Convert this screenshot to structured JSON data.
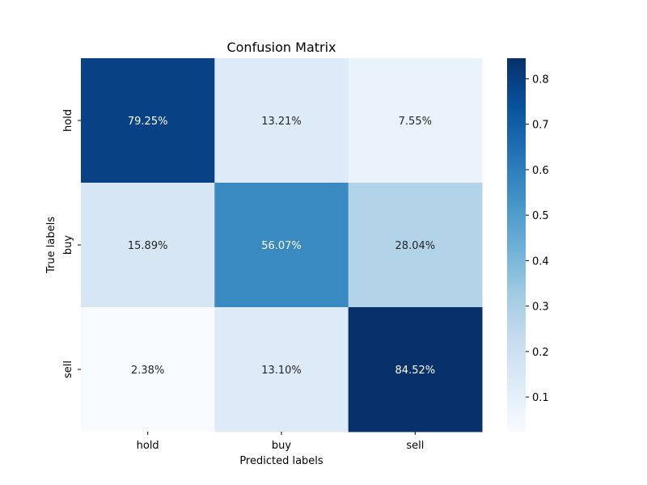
{
  "chart_data": {
    "type": "heatmap",
    "title": "Confusion Matrix",
    "xlabel": "Predicted labels",
    "ylabel": "True labels",
    "x_categories": [
      "hold",
      "buy",
      "sell"
    ],
    "y_categories": [
      "hold",
      "buy",
      "sell"
    ],
    "values": [
      [
        0.7925,
        0.1321,
        0.0755
      ],
      [
        0.1589,
        0.5607,
        0.2804
      ],
      [
        0.0238,
        0.131,
        0.8452
      ]
    ],
    "cell_labels": [
      [
        "79.25%",
        "13.21%",
        "7.55%"
      ],
      [
        "15.89%",
        "56.07%",
        "28.04%"
      ],
      [
        "2.38%",
        "13.10%",
        "84.52%"
      ]
    ],
    "colormap": "Blues",
    "colorbar": {
      "vmin": 0.0238,
      "vmax": 0.8452,
      "ticks": [
        0.1,
        0.2,
        0.3,
        0.4,
        0.5,
        0.6,
        0.7,
        0.8
      ],
      "tick_labels": [
        "0.1",
        "0.2",
        "0.3",
        "0.4",
        "0.5",
        "0.6",
        "0.7",
        "0.8"
      ]
    }
  }
}
